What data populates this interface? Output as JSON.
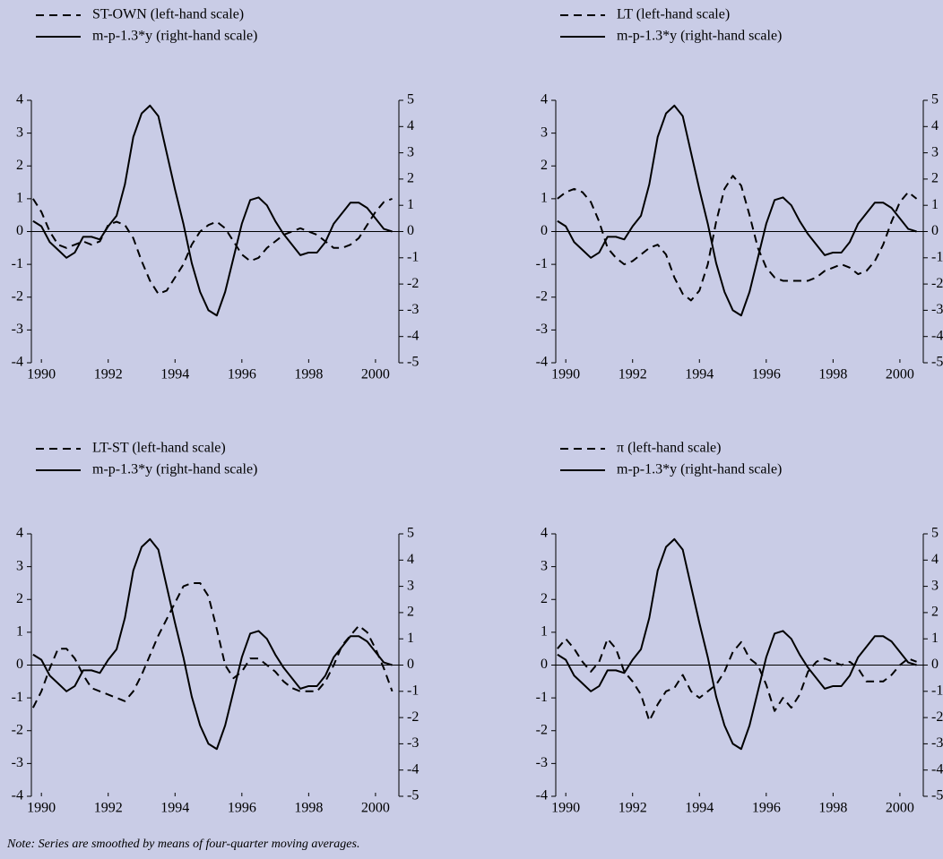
{
  "chart_data": [
    {
      "type": "line",
      "x": [
        1989.75,
        1990,
        1990.25,
        1990.5,
        1990.75,
        1991,
        1991.25,
        1991.5,
        1991.75,
        1992,
        1992.25,
        1992.5,
        1992.75,
        1993,
        1993.25,
        1993.5,
        1993.75,
        1994,
        1994.25,
        1994.5,
        1994.75,
        1995,
        1995.25,
        1995.5,
        1995.75,
        1996,
        1996.25,
        1996.5,
        1996.75,
        1997,
        1997.25,
        1997.5,
        1997.75,
        1998,
        1998.25,
        1998.5,
        1998.75,
        1999,
        1999.25,
        1999.5,
        1999.75,
        2000,
        2000.25,
        2000.5
      ],
      "xlim": [
        1989.7,
        2000.7
      ],
      "xticks": [
        1990,
        1992,
        1994,
        1996,
        1998,
        2000
      ],
      "ylim": [
        -4,
        4
      ],
      "yticks": [
        -4,
        -3,
        -2,
        -1,
        0,
        1,
        2,
        3,
        4
      ],
      "y2lim": [
        -5,
        5
      ],
      "y2ticks": [
        -5,
        -4,
        -3,
        -2,
        -1,
        0,
        1,
        2,
        3,
        4,
        5
      ],
      "series": [
        {
          "name": "ST-OWN (left-hand scale)",
          "color": "#000000",
          "style": "dashed",
          "values": [
            1.0,
            0.6,
            0.0,
            -0.4,
            -0.5,
            -0.4,
            -0.3,
            -0.4,
            -0.3,
            0.2,
            0.3,
            0.2,
            -0.2,
            -0.9,
            -1.5,
            -1.9,
            -1.8,
            -1.4,
            -1.0,
            -0.4,
            0.0,
            0.2,
            0.3,
            0.1,
            -0.3,
            -0.7,
            -0.9,
            -0.8,
            -0.5,
            -0.3,
            -0.1,
            0.0,
            0.1,
            0.0,
            -0.1,
            -0.3,
            -0.5,
            -0.5,
            -0.4,
            -0.2,
            0.2,
            0.6,
            0.9,
            1.0
          ]
        },
        {
          "name": "m-p-1.3*y (right-hand scale)",
          "color": "#000000",
          "style": "solid",
          "axis": "y2",
          "values": [
            0.4,
            0.2,
            -0.4,
            -0.7,
            -1.0,
            -0.8,
            -0.2,
            -0.2,
            -0.3,
            0.2,
            0.6,
            1.8,
            3.6,
            4.5,
            4.8,
            4.4,
            3.0,
            1.6,
            0.3,
            -1.2,
            -2.3,
            -3.0,
            -3.2,
            -2.3,
            -1.0,
            0.3,
            1.2,
            1.3,
            1.0,
            0.4,
            -0.1,
            -0.5,
            -0.9,
            -0.8,
            -0.8,
            -0.4,
            0.3,
            0.7,
            1.1,
            1.1,
            0.9,
            0.5,
            0.1,
            0.0
          ]
        }
      ]
    },
    {
      "type": "line",
      "x": [
        1989.75,
        1990,
        1990.25,
        1990.5,
        1990.75,
        1991,
        1991.25,
        1991.5,
        1991.75,
        1992,
        1992.25,
        1992.5,
        1992.75,
        1993,
        1993.25,
        1993.5,
        1993.75,
        1994,
        1994.25,
        1994.5,
        1994.75,
        1995,
        1995.25,
        1995.5,
        1995.75,
        1996,
        1996.25,
        1996.5,
        1996.75,
        1997,
        1997.25,
        1997.5,
        1997.75,
        1998,
        1998.25,
        1998.5,
        1998.75,
        1999,
        1999.25,
        1999.5,
        1999.75,
        2000,
        2000.25,
        2000.5
      ],
      "xlim": [
        1989.7,
        2000.7
      ],
      "xticks": [
        1990,
        1992,
        1994,
        1996,
        1998,
        2000
      ],
      "ylim": [
        -4,
        4
      ],
      "yticks": [
        -4,
        -3,
        -2,
        -1,
        0,
        1,
        2,
        3,
        4
      ],
      "y2lim": [
        -5,
        5
      ],
      "y2ticks": [
        -5,
        -4,
        -3,
        -2,
        -1,
        0,
        1,
        2,
        3,
        4,
        5
      ],
      "series": [
        {
          "name": "LT (left-hand scale)",
          "color": "#000000",
          "style": "dashed",
          "values": [
            1.0,
            1.2,
            1.3,
            1.2,
            0.9,
            0.3,
            -0.5,
            -0.8,
            -1.0,
            -0.9,
            -0.7,
            -0.5,
            -0.4,
            -0.7,
            -1.4,
            -1.9,
            -2.1,
            -1.8,
            -1.0,
            0.3,
            1.3,
            1.7,
            1.4,
            0.5,
            -0.5,
            -1.1,
            -1.4,
            -1.5,
            -1.5,
            -1.5,
            -1.5,
            -1.4,
            -1.2,
            -1.1,
            -1.0,
            -1.1,
            -1.3,
            -1.2,
            -0.9,
            -0.4,
            0.3,
            0.9,
            1.2,
            1.0
          ]
        },
        {
          "name": "m-p-1.3*y (right-hand scale)",
          "color": "#000000",
          "style": "solid",
          "axis": "y2",
          "values": [
            0.4,
            0.2,
            -0.4,
            -0.7,
            -1.0,
            -0.8,
            -0.2,
            -0.2,
            -0.3,
            0.2,
            0.6,
            1.8,
            3.6,
            4.5,
            4.8,
            4.4,
            3.0,
            1.6,
            0.3,
            -1.2,
            -2.3,
            -3.0,
            -3.2,
            -2.3,
            -1.0,
            0.3,
            1.2,
            1.3,
            1.0,
            0.4,
            -0.1,
            -0.5,
            -0.9,
            -0.8,
            -0.8,
            -0.4,
            0.3,
            0.7,
            1.1,
            1.1,
            0.9,
            0.5,
            0.1,
            0.0
          ]
        }
      ]
    },
    {
      "type": "line",
      "x": [
        1989.75,
        1990,
        1990.25,
        1990.5,
        1990.75,
        1991,
        1991.25,
        1991.5,
        1991.75,
        1992,
        1992.25,
        1992.5,
        1992.75,
        1993,
        1993.25,
        1993.5,
        1993.75,
        1994,
        1994.25,
        1994.5,
        1994.75,
        1995,
        1995.25,
        1995.5,
        1995.75,
        1996,
        1996.25,
        1996.5,
        1996.75,
        1997,
        1997.25,
        1997.5,
        1997.75,
        1998,
        1998.25,
        1998.5,
        1998.75,
        1999,
        1999.25,
        1999.5,
        1999.75,
        2000,
        2000.25,
        2000.5
      ],
      "xlim": [
        1989.7,
        2000.7
      ],
      "xticks": [
        1990,
        1992,
        1994,
        1996,
        1998,
        2000
      ],
      "ylim": [
        -4,
        4
      ],
      "yticks": [
        -4,
        -3,
        -2,
        -1,
        0,
        1,
        2,
        3,
        4
      ],
      "y2lim": [
        -5,
        5
      ],
      "y2ticks": [
        -5,
        -4,
        -3,
        -2,
        -1,
        0,
        1,
        2,
        3,
        4,
        5
      ],
      "series": [
        {
          "name": "LT-ST (left-hand scale)",
          "color": "#000000",
          "style": "dashed",
          "values": [
            -1.3,
            -0.8,
            -0.1,
            0.5,
            0.5,
            0.2,
            -0.3,
            -0.7,
            -0.8,
            -0.9,
            -1.0,
            -1.1,
            -0.8,
            -0.3,
            0.3,
            0.9,
            1.4,
            1.9,
            2.4,
            2.5,
            2.5,
            2.1,
            1.1,
            0.0,
            -0.4,
            -0.2,
            0.2,
            0.2,
            0.0,
            -0.2,
            -0.5,
            -0.7,
            -0.8,
            -0.8,
            -0.8,
            -0.5,
            0.0,
            0.6,
            0.9,
            1.2,
            1.0,
            0.5,
            -0.1,
            -0.8
          ]
        },
        {
          "name": "m-p-1.3*y (right-hand scale)",
          "color": "#000000",
          "style": "solid",
          "axis": "y2",
          "values": [
            0.4,
            0.2,
            -0.4,
            -0.7,
            -1.0,
            -0.8,
            -0.2,
            -0.2,
            -0.3,
            0.2,
            0.6,
            1.8,
            3.6,
            4.5,
            4.8,
            4.4,
            3.0,
            1.6,
            0.3,
            -1.2,
            -2.3,
            -3.0,
            -3.2,
            -2.3,
            -1.0,
            0.3,
            1.2,
            1.3,
            1.0,
            0.4,
            -0.1,
            -0.5,
            -0.9,
            -0.8,
            -0.8,
            -0.4,
            0.3,
            0.7,
            1.1,
            1.1,
            0.9,
            0.5,
            0.1,
            0.0
          ]
        }
      ]
    },
    {
      "type": "line",
      "x": [
        1989.75,
        1990,
        1990.25,
        1990.5,
        1990.75,
        1991,
        1991.25,
        1991.5,
        1991.75,
        1992,
        1992.25,
        1992.5,
        1992.75,
        1993,
        1993.25,
        1993.5,
        1993.75,
        1994,
        1994.25,
        1994.5,
        1994.75,
        1995,
        1995.25,
        1995.5,
        1995.75,
        1996,
        1996.25,
        1996.5,
        1996.75,
        1997,
        1997.25,
        1997.5,
        1997.75,
        1998,
        1998.25,
        1998.5,
        1998.75,
        1999,
        1999.25,
        1999.5,
        1999.75,
        2000,
        2000.25,
        2000.5
      ],
      "xlim": [
        1989.7,
        2000.7
      ],
      "xticks": [
        1990,
        1992,
        1994,
        1996,
        1998,
        2000
      ],
      "ylim": [
        -4,
        4
      ],
      "yticks": [
        -4,
        -3,
        -2,
        -1,
        0,
        1,
        2,
        3,
        4
      ],
      "y2lim": [
        -5,
        5
      ],
      "y2ticks": [
        -5,
        -4,
        -3,
        -2,
        -1,
        0,
        1,
        2,
        3,
        4,
        5
      ],
      "series": [
        {
          "name": "π (left-hand scale)",
          "color": "#000000",
          "style": "dashed",
          "values": [
            0.5,
            0.8,
            0.5,
            0.1,
            -0.2,
            0.1,
            0.8,
            0.5,
            -0.2,
            -0.5,
            -0.9,
            -1.7,
            -1.2,
            -0.8,
            -0.7,
            -0.3,
            -0.8,
            -1.0,
            -0.8,
            -0.6,
            -0.2,
            0.4,
            0.7,
            0.2,
            0.0,
            -0.6,
            -1.4,
            -1.0,
            -1.3,
            -0.9,
            -0.2,
            0.1,
            0.2,
            0.1,
            0.0,
            0.1,
            -0.1,
            -0.5,
            -0.5,
            -0.5,
            -0.3,
            0.0,
            0.2,
            0.1
          ]
        },
        {
          "name": "m-p-1.3*y (right-hand scale)",
          "color": "#000000",
          "style": "solid",
          "axis": "y2",
          "values": [
            0.4,
            0.2,
            -0.4,
            -0.7,
            -1.0,
            -0.8,
            -0.2,
            -0.2,
            -0.3,
            0.2,
            0.6,
            1.8,
            3.6,
            4.5,
            4.8,
            4.4,
            3.0,
            1.6,
            0.3,
            -1.2,
            -2.3,
            -3.0,
            -3.2,
            -2.3,
            -1.0,
            0.3,
            1.2,
            1.3,
            1.0,
            0.4,
            -0.1,
            -0.5,
            -0.9,
            -0.8,
            -0.8,
            -0.4,
            0.3,
            0.7,
            1.1,
            1.1,
            0.9,
            0.5,
            0.1,
            0.0
          ]
        }
      ]
    }
  ],
  "note": "Note: Series are smoothed by means of four-quarter moving averages."
}
